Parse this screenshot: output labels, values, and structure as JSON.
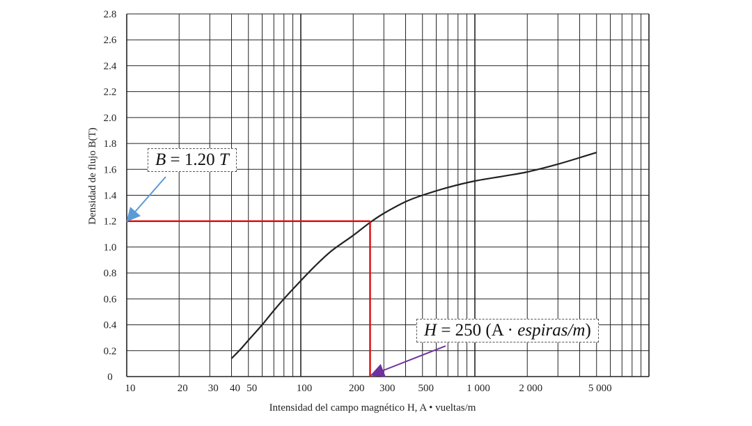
{
  "chart_data": {
    "type": "line",
    "xscale": "log",
    "xlim": [
      10,
      10000
    ],
    "ylim": [
      0,
      2.8
    ],
    "ylabel": "Densidad de flujo B(T)",
    "xlabel": "Intensidad del campo magnético  H,  A • vueltas/m",
    "x_tick_labels": [
      {
        "value": 10,
        "label": "10"
      },
      {
        "value": 20,
        "label": "20"
      },
      {
        "value": 30,
        "label": "30"
      },
      {
        "value": 40,
        "label": "40"
      },
      {
        "value": 50,
        "label": "50"
      },
      {
        "value": 100,
        "label": "100"
      },
      {
        "value": 200,
        "label": "200"
      },
      {
        "value": 300,
        "label": "300"
      },
      {
        "value": 500,
        "label": "500"
      },
      {
        "value": 1000,
        "label": "1 000"
      },
      {
        "value": 2000,
        "label": "2 000"
      },
      {
        "value": 5000,
        "label": "5 000"
      }
    ],
    "y_tick_labels": [
      "0",
      "0.2",
      "0.4",
      "0.6",
      "0.8",
      "1.0",
      "1.2",
      "1.4",
      "1.6",
      "1.8",
      "2.0",
      "2.2",
      "2.4",
      "2.6",
      "2.8"
    ],
    "y_ticks": [
      0,
      0.2,
      0.4,
      0.6,
      0.8,
      1.0,
      1.2,
      1.4,
      1.6,
      1.8,
      2.0,
      2.2,
      2.4,
      2.6,
      2.8
    ],
    "grid": true,
    "series": [
      {
        "points": [
          [
            40,
            0.14
          ],
          [
            45,
            0.21
          ],
          [
            50,
            0.28
          ],
          [
            60,
            0.4
          ],
          [
            70,
            0.51
          ],
          [
            80,
            0.6
          ],
          [
            100,
            0.74
          ],
          [
            120,
            0.85
          ],
          [
            150,
            0.97
          ],
          [
            200,
            1.09
          ],
          [
            250,
            1.19
          ],
          [
            300,
            1.26
          ],
          [
            400,
            1.35
          ],
          [
            500,
            1.4
          ],
          [
            700,
            1.46
          ],
          [
            1000,
            1.51
          ],
          [
            1500,
            1.55
          ],
          [
            2000,
            1.58
          ],
          [
            3000,
            1.64
          ],
          [
            4000,
            1.69
          ],
          [
            5000,
            1.73
          ]
        ],
        "color": "#222222"
      }
    ],
    "operating_point": {
      "x": 250,
      "y": 1.2,
      "color": "#dd1111"
    },
    "annotations": [
      {
        "id": "b",
        "lhs": "B",
        "rhs": "1.20",
        "unit": "T",
        "arrow_color": "#5b9bd5",
        "target": [
          10,
          1.2
        ]
      },
      {
        "id": "h",
        "lhs": "H",
        "rhs": "250",
        "unit_prefix": "(A · ",
        "unit_italic": "espiras/m",
        "unit_suffix": ")",
        "arrow_color": "#7030a0",
        "target": [
          250,
          0
        ]
      }
    ]
  }
}
